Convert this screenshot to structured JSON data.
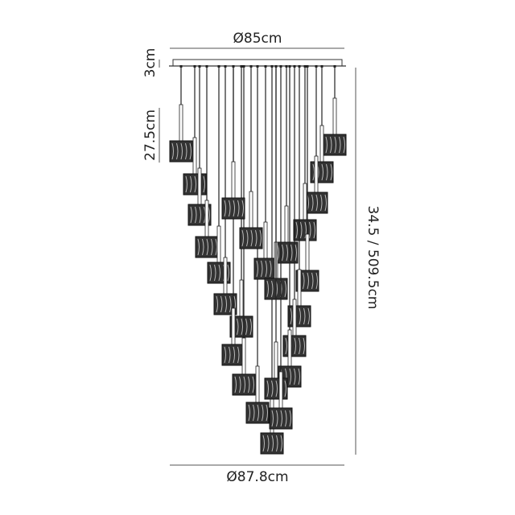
{
  "dimensions": {
    "top_width": "Ø85cm",
    "bottom_width": "Ø87.8cm",
    "canopy_height": "3cm",
    "shade_height": "27.5cm",
    "total_height": "34.5 / 509.5cm"
  },
  "colors": {
    "line": "#222222",
    "shade": "#333333"
  }
}
